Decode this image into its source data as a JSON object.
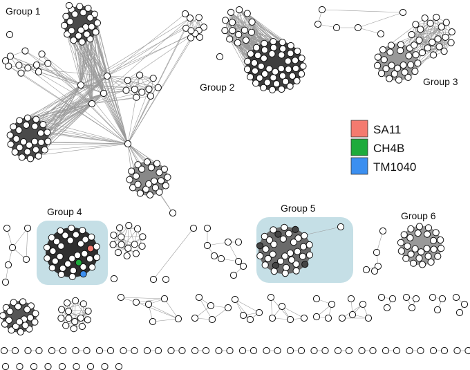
{
  "groups": [
    {
      "label": "Group 1"
    },
    {
      "label": "Group 2"
    },
    {
      "label": "Group 3"
    },
    {
      "label": "Group 4"
    },
    {
      "label": "Group 5"
    },
    {
      "label": "Group 6"
    }
  ],
  "legend": [
    {
      "label": "SA11",
      "color": "#f47a6f"
    },
    {
      "label": "CH4B",
      "color": "#1eab3c"
    },
    {
      "label": "TM1040",
      "color": "#3b8ff0"
    }
  ],
  "colors": {
    "highlight_box": "#c5dfe6",
    "node_fill": "#ffffff",
    "node_stroke": "#111111",
    "dense_core": "#555555",
    "edge": "#9a9a9a"
  }
}
